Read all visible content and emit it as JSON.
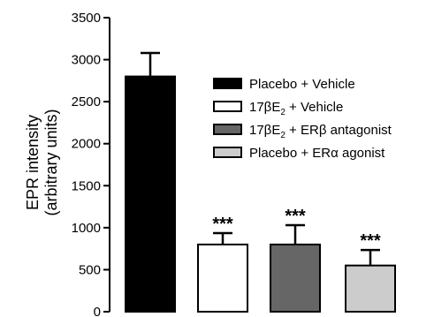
{
  "chart_data": {
    "type": "bar",
    "ylabel_lines": [
      "EPR intensity",
      "(arbitrary units)"
    ],
    "ylim": [
      0,
      3500
    ],
    "yticks": [
      0,
      500,
      1000,
      1500,
      2000,
      2500,
      3000,
      3500
    ],
    "grid": false,
    "legend_position": "right",
    "series": [
      {
        "name_parts": [
          [
            "Placebo + Vehicle",
            ""
          ]
        ],
        "value": 2800,
        "error": 280,
        "fill": "#000000",
        "significance": ""
      },
      {
        "name_parts": [
          [
            "17βE",
            ""
          ],
          [
            "2",
            "sub"
          ],
          [
            " + Vehicle",
            ""
          ]
        ],
        "value": 800,
        "error": 135,
        "fill": "#ffffff",
        "significance": "***"
      },
      {
        "name_parts": [
          [
            "17βE",
            ""
          ],
          [
            "2",
            "sub"
          ],
          [
            " + ERβ antagonist",
            ""
          ]
        ],
        "value": 800,
        "error": 230,
        "fill": "#666666",
        "significance": "***"
      },
      {
        "name_parts": [
          [
            "Placebo + ERα agonist",
            ""
          ]
        ],
        "value": 550,
        "error": 185,
        "fill": "#cccccc",
        "significance": "***"
      }
    ]
  }
}
